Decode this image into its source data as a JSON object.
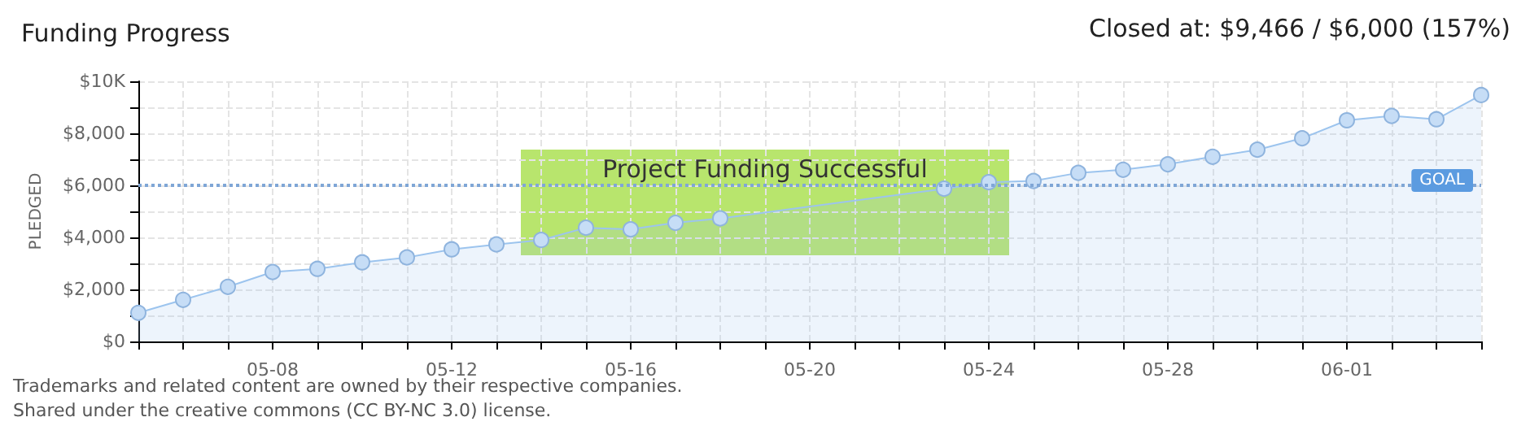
{
  "chart_data": {
    "type": "area",
    "title": "Funding Progress",
    "ylabel": "PLEDGED",
    "categories": [
      null,
      null,
      null,
      "05-08",
      null,
      null,
      null,
      "05-12",
      null,
      null,
      null,
      "05-16",
      null,
      null,
      null,
      "05-20",
      null,
      null,
      null,
      "05-24",
      null,
      null,
      null,
      "05-28",
      null,
      null,
      null,
      "06-01",
      null,
      null,
      null
    ],
    "series": [
      {
        "color": "#9cc4ee",
        "values": [
          1100,
          1600,
          2100,
          2670,
          2790,
          3040,
          3230,
          3540,
          3730,
          3900,
          4370,
          4310,
          4560,
          4730,
          null,
          null,
          null,
          null,
          5870,
          6120,
          6170,
          6480,
          6600,
          6810,
          7100,
          7370,
          7810,
          8500,
          8670,
          8540,
          9470
        ]
      }
    ],
    "ylim": [
      0,
      10000
    ],
    "yticks": [
      {
        "value": 0,
        "label": "$0"
      },
      {
        "value": 1000,
        "label": null
      },
      {
        "value": 2000,
        "label": "$2,000"
      },
      {
        "value": 3000,
        "label": null
      },
      {
        "value": 4000,
        "label": "$4,000"
      },
      {
        "value": 5000,
        "label": null
      },
      {
        "value": 6000,
        "label": "$6,000"
      },
      {
        "value": 7000,
        "label": null
      },
      {
        "value": 8000,
        "label": "$8,000"
      },
      {
        "value": 9000,
        "label": null
      },
      {
        "value": 10000,
        "label": "$10K"
      }
    ],
    "ref_lines": [
      {
        "axis": "y",
        "value": 6000,
        "label": "GOAL",
        "color": "#7fa6d6",
        "line_style": "dotted"
      }
    ],
    "grid": true,
    "marker": "circle",
    "annotations": [
      "Closed at: $9,466 / $6,000 (157%)",
      "Project Funding Successful",
      "Trademarks and related content are owned by their respective companies.",
      "Shared under the creative commons (CC BY-NC 3.0) license."
    ]
  }
}
